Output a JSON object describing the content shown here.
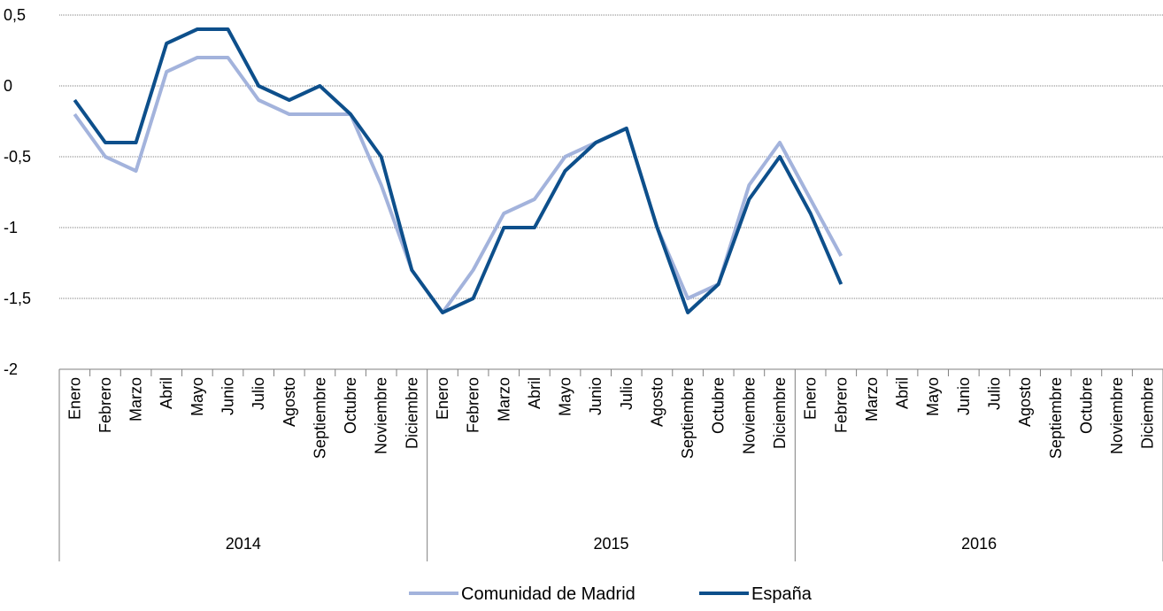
{
  "chart_data": {
    "type": "line",
    "title": "",
    "xlabel": "",
    "ylabel": "",
    "ylim": [
      -2,
      0.5
    ],
    "yticks": [
      "0,5",
      "0",
      "-0,5",
      "-1",
      "-1,5",
      "-2"
    ],
    "ytick_values": [
      0.5,
      0,
      -0.5,
      -1,
      -1.5,
      -2
    ],
    "grid": true,
    "legend_position": "bottom-center",
    "years": [
      {
        "label": "2014",
        "months": [
          "Enero",
          "Febrero",
          "Marzo",
          "Abril",
          "Mayo",
          "Junio",
          "Julio",
          "Agosto",
          "Septiembre",
          "Octubre",
          "Noviembre",
          "Diciembre"
        ]
      },
      {
        "label": "2015",
        "months": [
          "Enero",
          "Febrero",
          "Marzo",
          "Abril",
          "Mayo",
          "Junio",
          "Julio",
          "Agosto",
          "Septiembre",
          "Octubre",
          "Noviembre",
          "Diciembre"
        ]
      },
      {
        "label": "2016",
        "months": [
          "Enero",
          "Febrero",
          "Marzo",
          "Abril",
          "Mayo",
          "Junio",
          "Julio",
          "Agosto",
          "Septiembre",
          "Octubre",
          "Noviembre",
          "Diciembre"
        ]
      }
    ],
    "series": [
      {
        "name": "Comunidad de Madrid",
        "color": "#a3b3dc",
        "values": [
          -0.2,
          -0.5,
          -0.6,
          0.1,
          0.2,
          0.2,
          -0.1,
          -0.2,
          -0.2,
          -0.2,
          -0.7,
          -1.3,
          -1.6,
          -1.3,
          -0.9,
          -0.8,
          -0.5,
          -0.4,
          -0.3,
          -1.0,
          -1.5,
          -1.4,
          -0.7,
          -0.4,
          -0.8,
          -1.2
        ]
      },
      {
        "name": "España",
        "color": "#0d4f8b",
        "values": [
          -0.1,
          -0.4,
          -0.4,
          0.3,
          0.4,
          0.4,
          0.0,
          -0.1,
          0.0,
          -0.2,
          -0.5,
          -1.3,
          -1.6,
          -1.5,
          -1.0,
          -1.0,
          -0.6,
          -0.4,
          -0.3,
          -1.0,
          -1.6,
          -1.4,
          -0.8,
          -0.5,
          -0.9,
          -1.4
        ]
      }
    ]
  }
}
